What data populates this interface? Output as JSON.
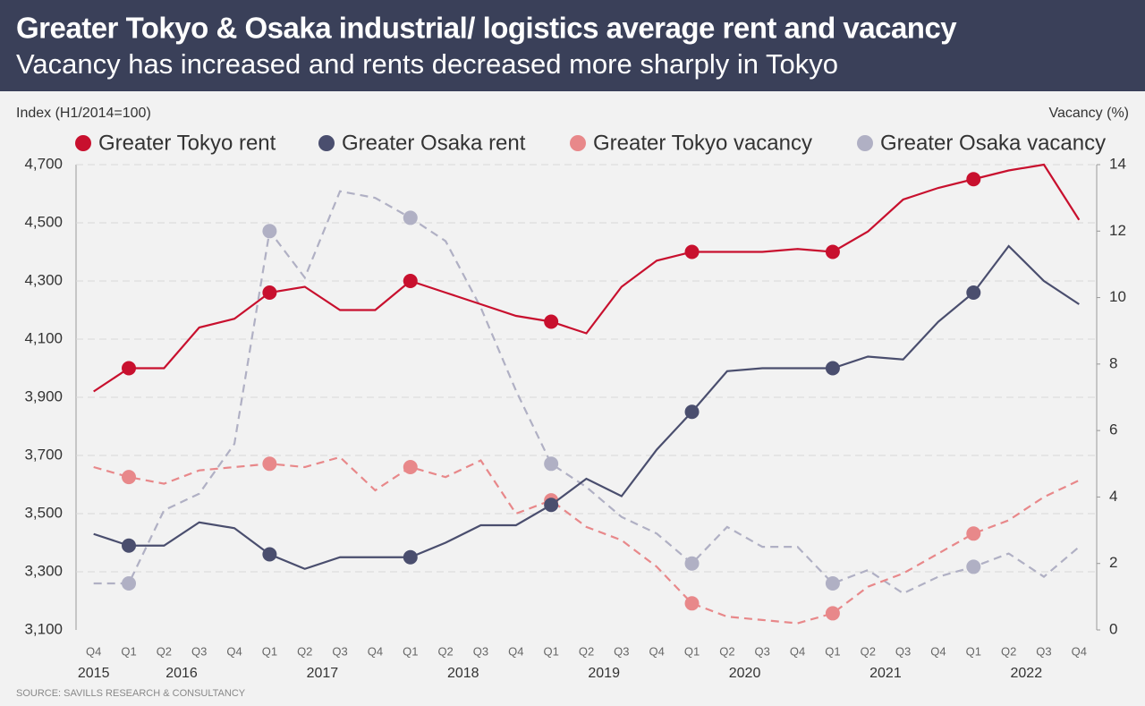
{
  "chart_data": {
    "type": "line",
    "title": "Greater Tokyo & Osaka industrial/ logistics average rent and vacancy",
    "subtitle": "Vacancy has increased and rents decreased more sharply in Tokyo",
    "y_label": "Index (H1/2014=100)",
    "y2_label": "Vacancy (%)",
    "source": "SOURCE:  SAVILLS RESEARCH & CONSULTANCY",
    "categories": [
      "Q4",
      "Q1",
      "Q2",
      "Q3",
      "Q4",
      "Q1",
      "Q2",
      "Q3",
      "Q4",
      "Q1",
      "Q2",
      "Q3",
      "Q4",
      "Q1",
      "Q2",
      "Q3",
      "Q4",
      "Q1",
      "Q2",
      "Q3",
      "Q4",
      "Q1",
      "Q2",
      "Q3",
      "Q4",
      "Q1",
      "Q2",
      "Q3",
      "Q4"
    ],
    "years": [
      "2015",
      "2016",
      "2017",
      "2018",
      "2019",
      "2020",
      "2021",
      "2022"
    ],
    "ylim": [
      3100,
      4700
    ],
    "yticks": [
      {
        "value": 3100,
        "label": "3,100"
      },
      {
        "value": 3300,
        "label": "3,300"
      },
      {
        "value": 3500,
        "label": "3,500"
      },
      {
        "value": 3700,
        "label": "3,700"
      },
      {
        "value": 3900,
        "label": "3,900"
      },
      {
        "value": 4100,
        "label": "4,100"
      },
      {
        "value": 4300,
        "label": "4,300"
      },
      {
        "value": 4500,
        "label": "4,500"
      },
      {
        "value": 4700,
        "label": "4,700"
      }
    ],
    "y2lim": [
      0,
      14
    ],
    "y2ticks": [
      0,
      2,
      4,
      6,
      8,
      10,
      12,
      14
    ],
    "grid": true,
    "series": [
      {
        "name": "Greater Tokyo rent",
        "color": "#c8102e",
        "dashed": false,
        "values": [
          3920,
          4000,
          4000,
          4140,
          4170,
          4260,
          4280,
          4200,
          4200,
          4300,
          4260,
          4220,
          4180,
          4160,
          4120,
          4280,
          4370,
          4400,
          4400,
          4400,
          4410,
          4400,
          4470,
          4580,
          4620,
          4650,
          4680,
          4700,
          4510
        ]
      },
      {
        "name": "Greater Osaka rent",
        "color": "#4a4e6e",
        "dashed": false,
        "values": [
          3430,
          3390,
          3390,
          3470,
          3450,
          3360,
          3310,
          3350,
          3350,
          3350,
          3400,
          3460,
          3460,
          3530,
          3620,
          3560,
          3720,
          3850,
          3990,
          4000,
          4000,
          4000,
          4040,
          4030,
          4160,
          4260,
          4420,
          4300,
          4220
        ]
      },
      {
        "name": "Greater Tokyo vacancy",
        "color": "#e8888a",
        "dashed": true,
        "axis": "y2",
        "values": [
          4.9,
          4.6,
          4.4,
          4.8,
          4.9,
          5.0,
          4.9,
          5.2,
          4.2,
          4.9,
          4.6,
          5.1,
          3.5,
          3.9,
          3.1,
          2.7,
          1.9,
          0.8,
          0.4,
          0.3,
          0.2,
          0.5,
          1.3,
          1.7,
          2.3,
          2.9,
          3.3,
          4.0,
          4.5
        ]
      },
      {
        "name": "Greater Osaka vacancy",
        "color": "#b0b0c4",
        "dashed": true,
        "axis": "y2",
        "values": [
          1.4,
          1.4,
          3.6,
          4.1,
          5.6,
          12.0,
          10.6,
          13.2,
          13.0,
          12.4,
          11.7,
          9.7,
          7.2,
          5.0,
          4.3,
          3.4,
          2.9,
          2.0,
          3.1,
          2.5,
          2.5,
          1.4,
          1.8,
          1.1,
          1.6,
          1.9,
          2.3,
          1.6,
          2.5
        ]
      }
    ]
  }
}
